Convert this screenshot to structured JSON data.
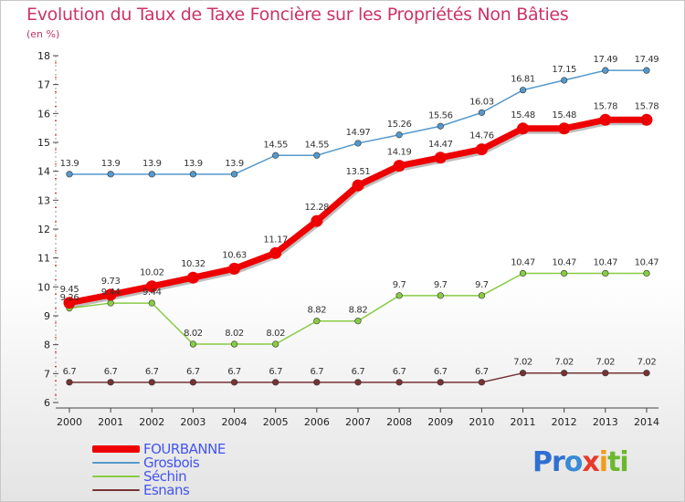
{
  "header": {
    "title": "Evolution du Taux de Taxe Foncière sur les Propriétés Non Bâties",
    "unit": "(en %)"
  },
  "logo": {
    "text": "Proxiti",
    "letters": [
      {
        "ch": "P",
        "color": "#2f6fd1"
      },
      {
        "ch": "r",
        "color": "#2f6fd1"
      },
      {
        "ch": "o",
        "color": "#3a8ad8"
      },
      {
        "ch": "x",
        "color": "#e8392a"
      },
      {
        "ch": "i",
        "color": "#f39c12"
      },
      {
        "ch": "t",
        "color": "#6ab82e"
      },
      {
        "ch": "i",
        "color": "#6ab82e"
      }
    ]
  },
  "chart_data": {
    "type": "line",
    "title": "Evolution du Taux de Taxe Foncière sur les Propriétés Non Bâties",
    "ylabel": "(en %)",
    "xlabel": "",
    "ylim": [
      6,
      18
    ],
    "y_ticks": [
      "6",
      "7",
      "8",
      "9",
      "10",
      "11",
      "12",
      "13",
      "14",
      "15",
      "16",
      "17",
      "18"
    ],
    "x": [
      "2000",
      "2001",
      "2002",
      "2003",
      "2004",
      "2005",
      "2006",
      "2007",
      "2008",
      "2009",
      "2010",
      "2011",
      "2012",
      "2013",
      "2014"
    ],
    "grid": false,
    "legend_position": "bottom-left",
    "series": [
      {
        "name": "Grosbois",
        "color": "#5599cc",
        "values": [
          13.9,
          13.9,
          13.9,
          13.9,
          13.9,
          14.55,
          14.55,
          14.97,
          15.26,
          15.56,
          16.03,
          16.81,
          17.15,
          17.49,
          17.49
        ],
        "labels": [
          "13.9",
          "13.9",
          "13.9",
          "13.9",
          "13.9",
          "14.55",
          "14.55",
          "14.97",
          "15.26",
          "15.56",
          "16.03",
          "16.81",
          "17.15",
          "17.49",
          "17.49"
        ]
      },
      {
        "name": "Séchin",
        "color": "#88cc44",
        "values": [
          9.26,
          9.44,
          9.44,
          8.02,
          8.02,
          8.02,
          8.82,
          8.82,
          9.7,
          9.7,
          9.7,
          10.47,
          10.47,
          10.47,
          10.47
        ],
        "labels": [
          "9.26",
          "9.44",
          "9.44",
          "8.02",
          "8.02",
          "8.02",
          "8.82",
          "8.82",
          "9.7",
          "9.7",
          "9.7",
          "10.47",
          "10.47",
          "10.47",
          "10.47"
        ]
      },
      {
        "name": "Esnans",
        "color": "#773333",
        "values": [
          6.7,
          6.7,
          6.7,
          6.7,
          6.7,
          6.7,
          6.7,
          6.7,
          6.7,
          6.7,
          6.7,
          7.02,
          7.02,
          7.02,
          7.02
        ],
        "labels": [
          "6.7",
          "6.7",
          "6.7",
          "6.7",
          "6.7",
          "6.7",
          "6.7",
          "6.7",
          "6.7",
          "6.7",
          "6.7",
          "7.02",
          "7.02",
          "7.02",
          "7.02"
        ]
      },
      {
        "name": "FOURBANNE",
        "color": "#ee0000",
        "values": [
          9.45,
          9.73,
          10.02,
          10.32,
          10.63,
          11.17,
          12.28,
          13.51,
          14.19,
          14.47,
          14.76,
          15.48,
          15.48,
          15.78,
          15.78
        ],
        "labels": [
          "9.45",
          "9.73",
          "10.02",
          "10.32",
          "10.63",
          "11.17",
          "12.28",
          "13.51",
          "14.19",
          "14.47",
          "14.76",
          "15.48",
          "15.48",
          "15.78",
          "15.78"
        ]
      }
    ],
    "legend": [
      {
        "name": "FOURBANNE",
        "color": "#ee0000",
        "text_color": "#4455ee"
      },
      {
        "name": "Grosbois",
        "color": "#5599cc",
        "text_color": "#4455ee"
      },
      {
        "name": "Séchin",
        "color": "#88cc44",
        "text_color": "#4455ee"
      },
      {
        "name": "Esnans",
        "color": "#773333",
        "text_color": "#4455ee"
      }
    ]
  }
}
